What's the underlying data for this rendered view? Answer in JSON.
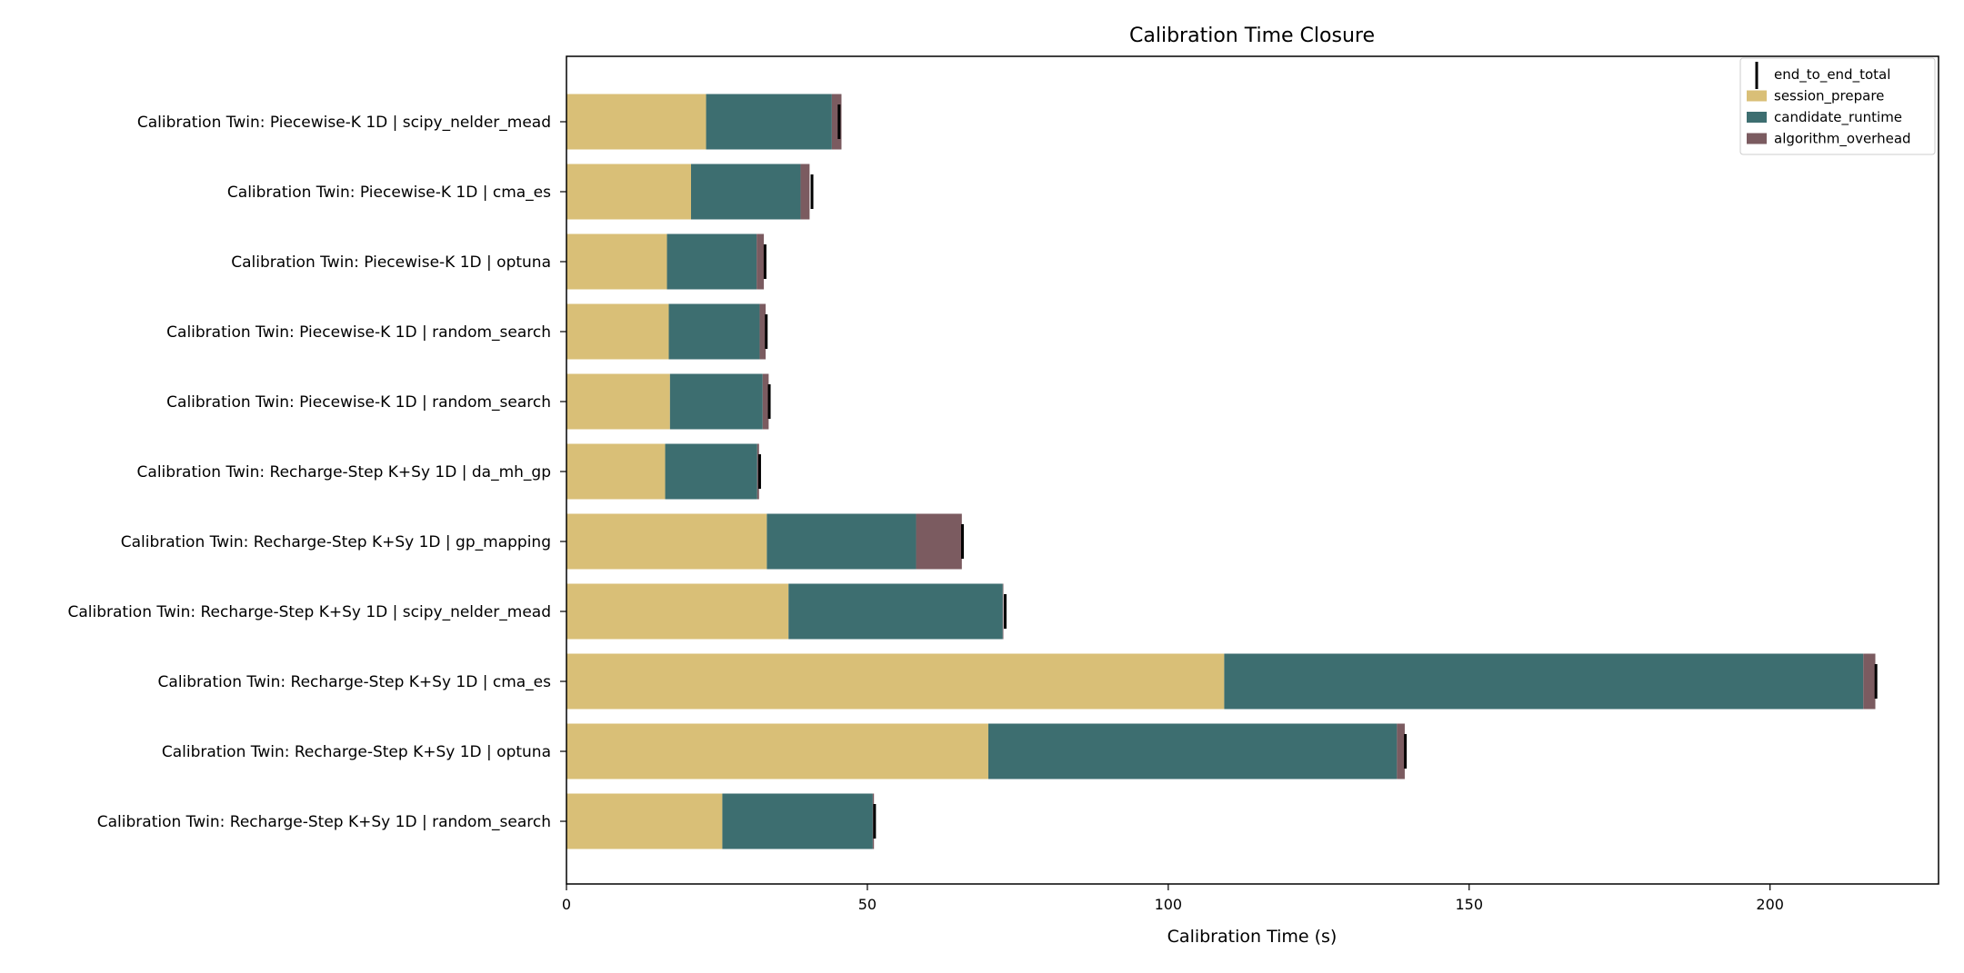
{
  "chart_data": {
    "type": "bar",
    "orientation": "horizontal",
    "stacked": true,
    "title": "Calibration Time Closure",
    "xlabel": "Calibration Time (s)",
    "ylabel": "",
    "xlim": [
      0,
      228
    ],
    "xticks": [
      0,
      50,
      100,
      150,
      200
    ],
    "grid": false,
    "legend_position": "top-right",
    "categories": [
      "Calibration Twin: Piecewise-K 1D | scipy_nelder_mead",
      "Calibration Twin: Piecewise-K 1D | cma_es",
      "Calibration Twin: Piecewise-K 1D | optuna",
      "Calibration Twin: Piecewise-K 1D | random_search",
      "Calibration Twin: Piecewise-K 1D | random_search",
      "Calibration Twin: Recharge-Step K+Sy 1D | da_mh_gp",
      "Calibration Twin: Recharge-Step K+Sy 1D | gp_mapping",
      "Calibration Twin: Recharge-Step K+Sy 1D | scipy_nelder_mead",
      "Calibration Twin: Recharge-Step K+Sy 1D | cma_es",
      "Calibration Twin: Recharge-Step K+Sy 1D | optuna",
      "Calibration Twin: Recharge-Step K+Sy 1D | random_search"
    ],
    "series": [
      {
        "name": "session_prepare",
        "color": "#D9BF77",
        "values": [
          23.2,
          20.7,
          16.7,
          17.0,
          17.2,
          16.4,
          33.3,
          36.9,
          109.3,
          70.1,
          25.9
        ]
      },
      {
        "name": "candidate_runtime",
        "color": "#3D6E70",
        "values": [
          20.9,
          18.2,
          14.9,
          15.1,
          15.4,
          15.3,
          24.8,
          35.6,
          106.2,
          67.9,
          25.0
        ]
      },
      {
        "name": "algorithm_overhead",
        "color": "#7B5B60",
        "values": [
          1.6,
          1.5,
          1.2,
          1.0,
          1.0,
          0.3,
          7.6,
          0.1,
          2.0,
          1.3,
          0.2
        ]
      }
    ],
    "end_to_end_total": {
      "name": "end_to_end_total",
      "color": "#000000",
      "values": [
        45.3,
        40.8,
        33.0,
        33.2,
        33.7,
        32.1,
        65.8,
        72.9,
        217.6,
        139.4,
        51.2
      ]
    }
  }
}
